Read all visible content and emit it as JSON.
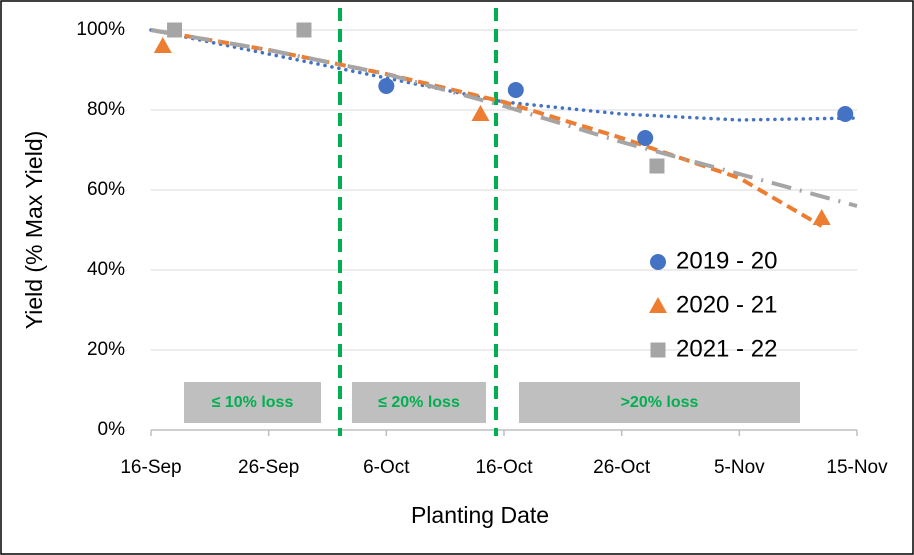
{
  "chart_data": {
    "type": "scatter",
    "y_axis_label": "Yield (% Max Yield)",
    "x_axis_label": "Planting Date",
    "xlim": [
      259,
      319
    ],
    "xticks": [
      {
        "value": 259,
        "label": "16-Sep"
      },
      {
        "value": 269,
        "label": "26-Sep"
      },
      {
        "value": 279,
        "label": "6-Oct"
      },
      {
        "value": 289,
        "label": "16-Oct"
      },
      {
        "value": 299,
        "label": "26-Oct"
      },
      {
        "value": 309,
        "label": "5-Nov"
      },
      {
        "value": 319,
        "label": "15-Nov"
      }
    ],
    "ylim": [
      0,
      100
    ],
    "yticks": [
      {
        "value": 0,
        "label": "0%"
      },
      {
        "value": 20,
        "label": "20%"
      },
      {
        "value": 40,
        "label": "40%"
      },
      {
        "value": 60,
        "label": "60%"
      },
      {
        "value": 80,
        "label": "80%"
      },
      {
        "value": 100,
        "label": "100%"
      }
    ],
    "grid": true,
    "legend": "right",
    "series": [
      {
        "name": "2019 - 20",
        "color": "#4472c4",
        "marker": "circle",
        "x": [
          279,
          290,
          301,
          318
        ],
        "values": [
          86,
          85,
          73,
          79
        ]
      },
      {
        "name": "2020 - 21",
        "color": "#ed7d31",
        "marker": "triangle",
        "x": [
          260,
          287,
          316
        ],
        "values": [
          96,
          79,
          53
        ]
      },
      {
        "name": "2021 - 22",
        "color": "#a5a5a5",
        "marker": "square",
        "x": [
          261,
          272,
          302
        ],
        "values": [
          100,
          100,
          66
        ]
      }
    ],
    "trendlines": [
      {
        "color": "#4472c4",
        "style": "dotted",
        "x": [
          259,
          269,
          279,
          289,
          299,
          309,
          319
        ],
        "values": [
          100,
          94,
          88,
          82,
          79,
          77.5,
          78
        ]
      },
      {
        "color": "#ed7d31",
        "style": "dashed",
        "x": [
          259,
          269,
          279,
          289,
          299,
          309,
          316
        ],
        "values": [
          100,
          95,
          89,
          82,
          73,
          63,
          51
        ]
      },
      {
        "color": "#a5a5a5",
        "style": "dashdot",
        "x": [
          259,
          269,
          279,
          289,
          299,
          309,
          319
        ],
        "values": [
          100,
          95,
          89,
          81,
          72,
          64,
          56
        ]
      }
    ],
    "annotations": [
      "≤ 10% loss",
      "≤ 20% loss",
      ">20% loss"
    ]
  }
}
